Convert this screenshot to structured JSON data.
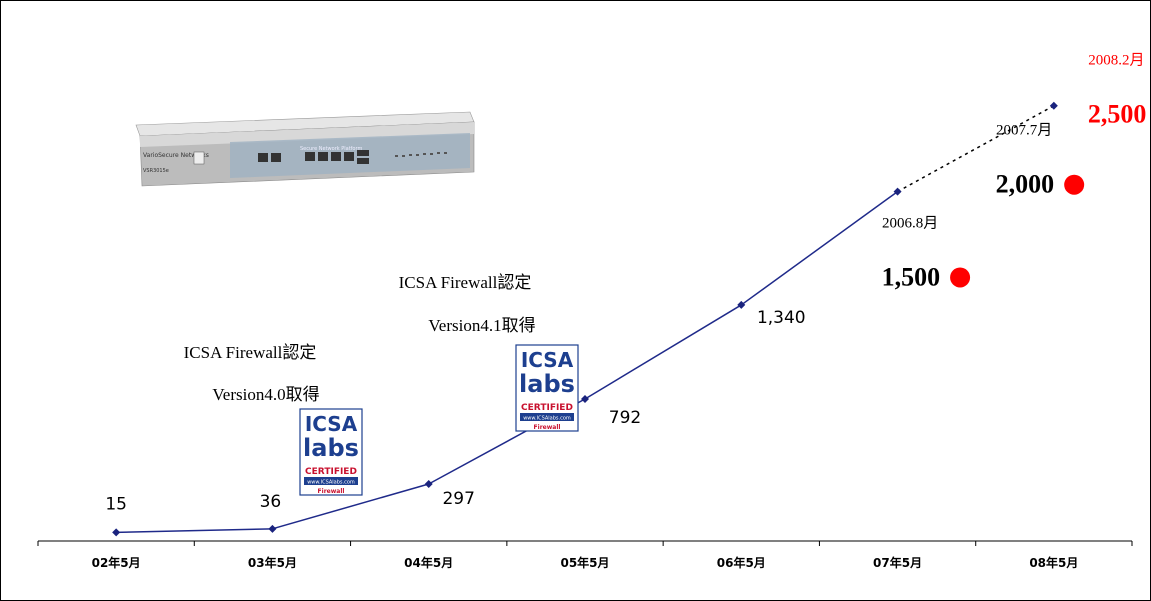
{
  "chart_data": {
    "type": "line",
    "categories": [
      "02年5月",
      "03年5月",
      "04年5月",
      "05年5月",
      "06年5月",
      "07年5月",
      "08年5月"
    ],
    "series": [
      {
        "values": [
          15,
          36,
          297,
          792,
          1340,
          2000,
          2500
        ]
      }
    ],
    "data_labels": [
      "15",
      "36",
      "297",
      "792",
      "1,340"
    ],
    "projected_from_index": 5,
    "ylim": [
      0,
      2650
    ],
    "grid": false,
    "milestones": [
      {
        "date": "2006.8月",
        "value": "1,500",
        "x": 5.4,
        "y": 1500,
        "color": "#000000",
        "dot_color": "#ff0000"
      },
      {
        "date": "2007.7月",
        "value": "2,000",
        "x": 6.13,
        "y": 2040,
        "color": "#000000",
        "dot_color": "#ff0000"
      },
      {
        "date": "2008.2月",
        "value": "2,500",
        "x": 6.72,
        "y": 2450,
        "color": "#ff0000",
        "dot_color": "#ff0000"
      }
    ],
    "annotations": [
      {
        "line1": "ICSA Firewall認定",
        "line2": "Version4.0取得"
      },
      {
        "line1": "ICSA Firewall認定",
        "line2": "Version4.1取得"
      }
    ],
    "badge": {
      "l1": "ICSA",
      "l2": "labs",
      "l3": "CERTIFIED",
      "l4": "www.ICSAlabs.com",
      "l5": "Firewall"
    },
    "device": {
      "brand": "VarioSecure Networks",
      "model": "VSR3015e",
      "panel": "Secure Network Platform"
    },
    "colors": {
      "line": "#1f2a8a",
      "marker": "#1a237e",
      "dot": "#ff0000",
      "accent_text": "#ff0000",
      "badge_blue": "#1d3f8f",
      "badge_red": "#c8102e"
    }
  }
}
